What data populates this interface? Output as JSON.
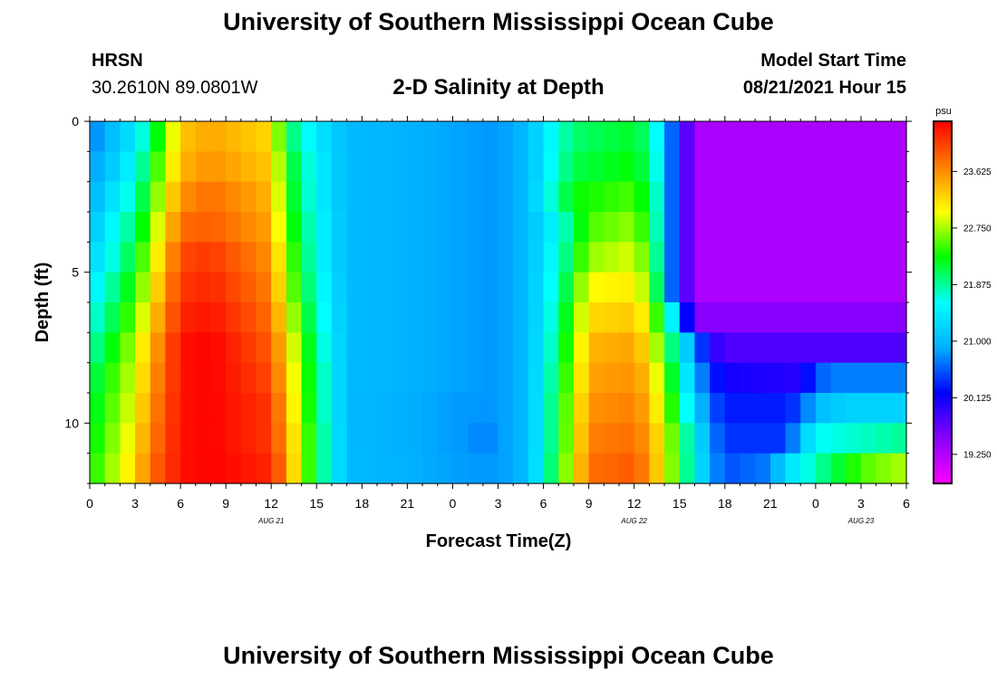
{
  "header": {
    "title": "University of Southern Mississippi Ocean Cube",
    "station": "HRSN",
    "coords": "30.2610N  89.0801W",
    "subtitle": "2-D Salinity at Depth",
    "model_start_label": "Model Start Time",
    "model_start_value": "08/21/2021 Hour 15"
  },
  "footer": {
    "title": "University of Southern Mississippi Ocean Cube"
  },
  "chart_data": {
    "type": "heatmap",
    "title": "2-D Salinity at Depth",
    "xlabel": "Forecast Time(Z)",
    "ylabel": "Depth (ft)",
    "x_tick_labels": [
      "0",
      "3",
      "6",
      "9",
      "12",
      "15",
      "18",
      "21",
      "0",
      "3",
      "6",
      "9",
      "12",
      "15",
      "18",
      "21",
      "0",
      "3",
      "6"
    ],
    "x_range_hours": [
      0,
      54
    ],
    "date_labels": [
      {
        "text": "AUG  21",
        "hour": 12
      },
      {
        "text": "AUG  22",
        "hour": 36
      },
      {
        "text": "AUG  23",
        "hour": 51
      }
    ],
    "y_tick_labels": [
      "0",
      "5",
      "10"
    ],
    "y_range_ft": [
      0,
      12
    ],
    "colorbar": {
      "unit": "psu",
      "min": 18.8,
      "max": 24.4,
      "labels": [
        "23.625",
        "22.750",
        "21.875",
        "21.000",
        "20.125",
        "19.250"
      ],
      "colors": [
        "#ff00ff",
        "#8800ff",
        "#0000ff",
        "#00b0ff",
        "#00ffff",
        "#00ff00",
        "#ffff00",
        "#ff8000",
        "#ff0000"
      ]
    },
    "depth_rows": 12,
    "x_columns": 54,
    "keyframes_note": "salinity (psu) at forecast hours for each 1-ft depth band, linearly interpolated in time",
    "keyframes": [
      [
        [
          0,
          20.7
        ],
        [
          1,
          20.9
        ],
        [
          3,
          21.4
        ],
        [
          5,
          22.6
        ],
        [
          6,
          23.3
        ],
        [
          8,
          23.5
        ],
        [
          12,
          23.2
        ],
        [
          13,
          22.1
        ],
        [
          15,
          21.4
        ],
        [
          17,
          21.0
        ],
        [
          27,
          20.8
        ],
        [
          29,
          21.0
        ],
        [
          30,
          21.4
        ],
        [
          32,
          22.0
        ],
        [
          36,
          22.2
        ],
        [
          37,
          21.9
        ],
        [
          38,
          21.3
        ],
        [
          38.5,
          20.6
        ],
        [
          40,
          19.3
        ],
        [
          54,
          19.3
        ]
      ],
      [
        [
          0,
          20.8
        ],
        [
          1,
          21.0
        ],
        [
          3,
          21.6
        ],
        [
          5,
          22.8
        ],
        [
          6,
          23.4
        ],
        [
          8,
          23.6
        ],
        [
          12,
          23.3
        ],
        [
          13,
          22.3
        ],
        [
          15,
          21.5
        ],
        [
          17,
          21.0
        ],
        [
          27,
          20.8
        ],
        [
          29,
          21.0
        ],
        [
          30,
          21.4
        ],
        [
          32,
          22.1
        ],
        [
          36,
          22.3
        ],
        [
          37,
          22.0
        ],
        [
          38,
          21.3
        ],
        [
          38.5,
          20.6
        ],
        [
          40,
          19.3
        ],
        [
          54,
          19.3
        ]
      ],
      [
        [
          0,
          20.9
        ],
        [
          1,
          21.2
        ],
        [
          3,
          21.8
        ],
        [
          5,
          23.0
        ],
        [
          6,
          23.6
        ],
        [
          8,
          23.8
        ],
        [
          12,
          23.4
        ],
        [
          13,
          22.4
        ],
        [
          15,
          21.5
        ],
        [
          17,
          21.0
        ],
        [
          27,
          20.8
        ],
        [
          29,
          21.0
        ],
        [
          30,
          21.5
        ],
        [
          32,
          22.3
        ],
        [
          36,
          22.5
        ],
        [
          37,
          22.1
        ],
        [
          38,
          21.4
        ],
        [
          38.5,
          20.6
        ],
        [
          40,
          19.3
        ],
        [
          54,
          19.3
        ]
      ],
      [
        [
          0,
          21.0
        ],
        [
          1,
          21.4
        ],
        [
          3,
          22.0
        ],
        [
          5,
          23.2
        ],
        [
          6,
          23.8
        ],
        [
          8,
          23.9
        ],
        [
          12,
          23.5
        ],
        [
          13,
          22.5
        ],
        [
          15,
          21.6
        ],
        [
          17,
          21.0
        ],
        [
          27,
          20.8
        ],
        [
          29,
          21.0
        ],
        [
          31,
          21.6
        ],
        [
          33,
          22.5
        ],
        [
          36,
          22.7
        ],
        [
          37,
          22.2
        ],
        [
          38,
          21.4
        ],
        [
          38.5,
          20.6
        ],
        [
          40,
          19.3
        ],
        [
          54,
          19.3
        ]
      ],
      [
        [
          0,
          21.2
        ],
        [
          1,
          21.5
        ],
        [
          3,
          22.2
        ],
        [
          4,
          22.8
        ],
        [
          6,
          24.0
        ],
        [
          8,
          24.1
        ],
        [
          12,
          23.6
        ],
        [
          13,
          22.7
        ],
        [
          15,
          21.6
        ],
        [
          17,
          21.0
        ],
        [
          27,
          20.8
        ],
        [
          29,
          21.0
        ],
        [
          31,
          21.7
        ],
        [
          33,
          22.7
        ],
        [
          36,
          22.9
        ],
        [
          37,
          22.4
        ],
        [
          38,
          21.4
        ],
        [
          38.5,
          20.6
        ],
        [
          40,
          19.3
        ],
        [
          54,
          19.3
        ]
      ],
      [
        [
          0,
          21.4
        ],
        [
          1,
          21.7
        ],
        [
          3,
          22.4
        ],
        [
          4,
          23.0
        ],
        [
          6,
          24.1
        ],
        [
          8,
          24.2
        ],
        [
          12,
          23.7
        ],
        [
          13,
          22.8
        ],
        [
          15,
          21.7
        ],
        [
          17,
          21.0
        ],
        [
          27,
          20.8
        ],
        [
          29,
          21.0
        ],
        [
          31,
          21.8
        ],
        [
          33,
          23.0
        ],
        [
          36,
          23.1
        ],
        [
          37,
          22.6
        ],
        [
          38,
          21.5
        ],
        [
          38.5,
          20.6
        ],
        [
          40,
          19.3
        ],
        [
          54,
          19.3
        ]
      ],
      [
        [
          0,
          21.6
        ],
        [
          1,
          21.9
        ],
        [
          3,
          22.6
        ],
        [
          4,
          23.2
        ],
        [
          6,
          24.2
        ],
        [
          8,
          24.3
        ],
        [
          12,
          23.8
        ],
        [
          13,
          23.0
        ],
        [
          15,
          21.8
        ],
        [
          17,
          21.0
        ],
        [
          27,
          20.8
        ],
        [
          29,
          21.0
        ],
        [
          31,
          21.9
        ],
        [
          33,
          23.2
        ],
        [
          36,
          23.3
        ],
        [
          37,
          22.9
        ],
        [
          38,
          22.0
        ],
        [
          39,
          21.0
        ],
        [
          39.5,
          20.2
        ],
        [
          40.5,
          19.5
        ],
        [
          54,
          19.5
        ]
      ],
      [
        [
          0,
          21.8
        ],
        [
          1,
          22.1
        ],
        [
          3,
          22.8
        ],
        [
          4,
          23.4
        ],
        [
          6,
          24.3
        ],
        [
          8,
          24.4
        ],
        [
          12,
          23.9
        ],
        [
          13,
          23.2
        ],
        [
          15,
          21.9
        ],
        [
          17,
          21.0
        ],
        [
          27,
          20.8
        ],
        [
          29,
          21.0
        ],
        [
          31,
          22.0
        ],
        [
          33,
          23.4
        ],
        [
          36,
          23.5
        ],
        [
          37,
          23.1
        ],
        [
          38,
          22.4
        ],
        [
          39,
          21.5
        ],
        [
          40,
          20.8
        ],
        [
          41,
          20.0
        ],
        [
          42,
          19.8
        ],
        [
          54,
          19.8
        ]
      ],
      [
        [
          0,
          22.0
        ],
        [
          1,
          22.3
        ],
        [
          3,
          22.9
        ],
        [
          4,
          23.5
        ],
        [
          6,
          24.3
        ],
        [
          8,
          24.4
        ],
        [
          12,
          24.0
        ],
        [
          13,
          23.3
        ],
        [
          15,
          22.0
        ],
        [
          17,
          21.0
        ],
        [
          27,
          20.8
        ],
        [
          29,
          21.0
        ],
        [
          31,
          22.1
        ],
        [
          33,
          23.5
        ],
        [
          36,
          23.6
        ],
        [
          37,
          23.3
        ],
        [
          38,
          22.6
        ],
        [
          39,
          21.8
        ],
        [
          40,
          21.0
        ],
        [
          41,
          20.4
        ],
        [
          42,
          20.1
        ],
        [
          47,
          20.0
        ],
        [
          48,
          20.5
        ],
        [
          49,
          20.7
        ],
        [
          54,
          20.7
        ]
      ],
      [
        [
          0,
          22.1
        ],
        [
          1,
          22.4
        ],
        [
          3,
          23.0
        ],
        [
          4,
          23.6
        ],
        [
          6,
          24.3
        ],
        [
          8,
          24.4
        ],
        [
          12,
          24.1
        ],
        [
          13,
          23.4
        ],
        [
          15,
          22.0
        ],
        [
          17,
          21.0
        ],
        [
          25,
          20.8
        ],
        [
          27,
          20.8
        ],
        [
          29,
          21.0
        ],
        [
          31,
          22.2
        ],
        [
          33,
          23.6
        ],
        [
          36,
          23.7
        ],
        [
          37,
          23.4
        ],
        [
          38,
          22.8
        ],
        [
          39,
          22.0
        ],
        [
          40,
          21.2
        ],
        [
          41,
          20.6
        ],
        [
          42,
          20.3
        ],
        [
          46,
          20.3
        ],
        [
          47,
          20.5
        ],
        [
          48,
          21.0
        ],
        [
          50,
          21.2
        ],
        [
          54,
          21.2
        ]
      ],
      [
        [
          0,
          22.2
        ],
        [
          1,
          22.5
        ],
        [
          3,
          23.1
        ],
        [
          4,
          23.7
        ],
        [
          6,
          24.3
        ],
        [
          8,
          24.4
        ],
        [
          12,
          24.1
        ],
        [
          13,
          23.5
        ],
        [
          15,
          22.1
        ],
        [
          17,
          21.0
        ],
        [
          25,
          20.8
        ],
        [
          26,
          20.7
        ],
        [
          27,
          20.8
        ],
        [
          29,
          21.0
        ],
        [
          31,
          22.2
        ],
        [
          33,
          23.7
        ],
        [
          36,
          23.8
        ],
        [
          37,
          23.5
        ],
        [
          38,
          23.0
        ],
        [
          39,
          22.2
        ],
        [
          40,
          21.5
        ],
        [
          41,
          20.8
        ],
        [
          42,
          20.4
        ],
        [
          46,
          20.4
        ],
        [
          47,
          21.0
        ],
        [
          48,
          21.6
        ],
        [
          54,
          21.9
        ]
      ],
      [
        [
          0,
          22.3
        ],
        [
          1,
          22.6
        ],
        [
          3,
          23.2
        ],
        [
          4,
          23.8
        ],
        [
          6,
          24.3
        ],
        [
          8,
          24.4
        ],
        [
          12,
          24.2
        ],
        [
          13,
          23.6
        ],
        [
          14,
          22.8
        ],
        [
          15,
          22.1
        ],
        [
          17,
          21.0
        ],
        [
          26,
          20.8
        ],
        [
          27,
          20.8
        ],
        [
          29,
          21.0
        ],
        [
          31,
          22.3
        ],
        [
          33,
          23.8
        ],
        [
          36,
          23.9
        ],
        [
          37,
          23.6
        ],
        [
          38,
          23.0
        ],
        [
          39,
          22.3
        ],
        [
          40,
          21.5
        ],
        [
          41,
          20.9
        ],
        [
          42,
          20.5
        ],
        [
          45,
          20.7
        ],
        [
          46,
          21.3
        ],
        [
          48,
          21.8
        ],
        [
          51,
          22.5
        ],
        [
          54,
          22.8
        ]
      ]
    ]
  }
}
